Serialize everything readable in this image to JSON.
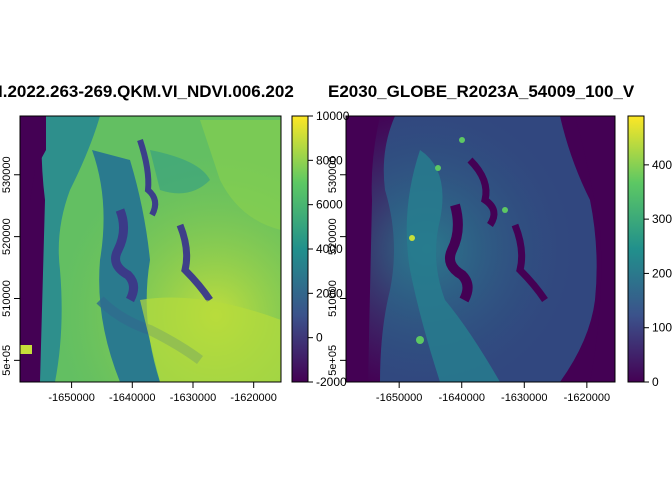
{
  "chart_data": [
    {
      "type": "heatmap",
      "title": "I.2022.263-269.QKM.VI_NDVI.006.202",
      "x_ticks": [
        -1650000,
        -1640000,
        -1630000,
        -1620000
      ],
      "x_tick_labels": [
        "-1650000",
        "-1640000",
        "-1630000",
        "-1620000"
      ],
      "y_ticks": [
        500000,
        510000,
        520000,
        530000
      ],
      "y_tick_labels": [
        "5e+05",
        "510000",
        "520000",
        "530000"
      ],
      "xlim": [
        -1658500,
        -1615500
      ],
      "ylim": [
        496500,
        539500
      ],
      "legend": {
        "position": "right",
        "min": -2000,
        "max": 10000,
        "ticks": [
          -2000,
          0,
          2000,
          4000,
          6000,
          8000,
          10000
        ],
        "tick_labels": [
          "-2000",
          "0",
          "2000",
          "4000",
          "6000",
          "8000",
          "10000"
        ]
      },
      "colormap": [
        "#440154",
        "#3b528b",
        "#21908c",
        "#5dc863",
        "#fde725"
      ]
    },
    {
      "type": "heatmap",
      "title": "E2030_GLOBE_R2023A_54009_100_V",
      "x_ticks": [
        -1650000,
        -1640000,
        -1630000,
        -1620000
      ],
      "x_tick_labels": [
        "-1650000",
        "-1640000",
        "-1630000",
        "-1620000"
      ],
      "y_ticks": [
        500000,
        510000,
        520000,
        530000
      ],
      "y_tick_labels": [
        "5e+05",
        "510000",
        "520000",
        "530000"
      ],
      "xlim": [
        -1658500,
        -1615500
      ],
      "ylim": [
        496500,
        539500
      ],
      "legend": {
        "position": "right",
        "min": 0,
        "max": 490,
        "ticks": [
          0,
          100,
          200,
          300,
          400
        ],
        "tick_labels": [
          "0",
          "100",
          "200",
          "300",
          "400"
        ]
      },
      "colormap": [
        "#440154",
        "#3b528b",
        "#21908c",
        "#5dc863",
        "#fde725"
      ]
    }
  ]
}
